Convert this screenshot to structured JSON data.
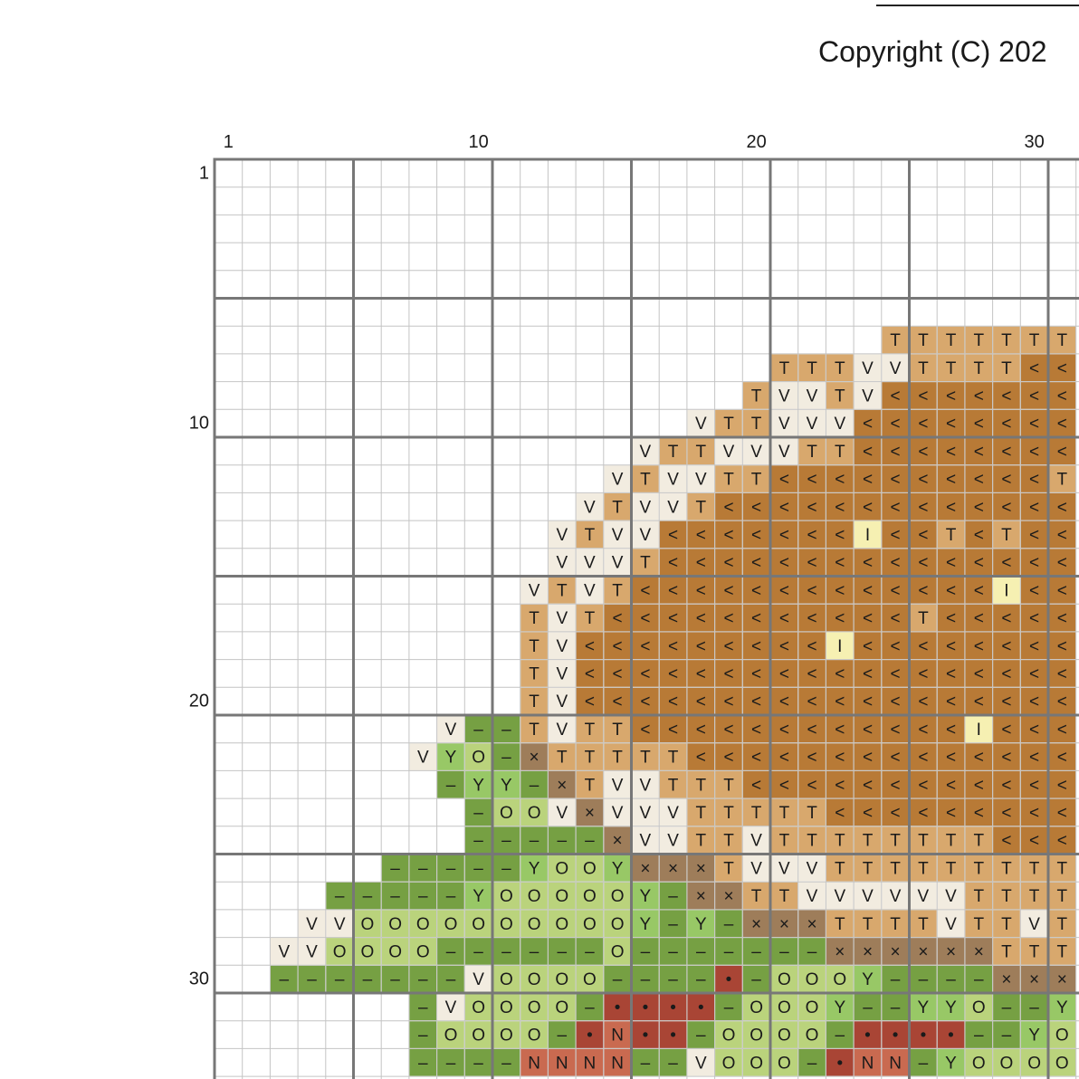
{
  "header": {
    "copyright": "Copyright (C) 202"
  },
  "grid": {
    "col_labels": [
      1,
      10,
      20,
      30
    ],
    "row_labels": [
      1,
      10,
      20,
      30
    ],
    "palette": {
      "<": "#b87a36",
      "T": "#d8a86d",
      "V": "#f2ece0",
      "I": "#f6f0b2",
      "×": "#9e7d5a",
      "Y": "#98c866",
      "O": "#bad37c",
      "–": "#76a043",
      "•": "#a94535",
      "N": "#c96a50"
    },
    "rows": {
      "7": "                        TTTTTTT",
      "8": "                    TTTVVTTTT<<",
      "9": "                   TVVTV<<<<<<<",
      "10": "                 VTTVVV<<<<<<<<",
      "11": "               VTTVVVTT<<<<<<<<",
      "12": "              VTVVTT<<<<<<<<<<T",
      "13": "             VTVVT<<<<<<<<<<<<<",
      "14": "            VTVV<<<<<<<I<<T<T<<",
      "15": "            VVVT<<<<<<<<<<<<<<<",
      "16": "           VTVT<<<<<<<<<<<<<I<<",
      "17": "           TVT<<<<<<<<<<<T<<<<<",
      "18": "           TV<<<<<<<<<I<<<<<<<<",
      "19": "           TV<<<<<<<<<<<<<<<<<<",
      "20": "           TV<<<<<<<<<<<<<<<<<<",
      "21": "        V––TVTT<<<<<<<<<<<<I<<<",
      "22": "       VYO–×TTTTT<<<<<<<<<<<<<<",
      "23": "        –YY–×TVVTTT<<<<<<<<<<<<",
      "24": "         –OOV×VVVTTTTT<<<<<<<<<",
      "25": "         –––––×VVTTVTTTTTTTT<<<",
      "26": "      –––––YOOY×××TVVVTTTTTTTTT",
      "27": "    –––––YOOOOOY–××TTVVVVVVTTTT",
      "28": "   VVOOOOOOOOOOY–Y–×××TTTTVTTVT",
      "29": "  VVOOOO––––––O–––––––××××××TTT",
      "30": "  –––––––VOOOO––––•–OOOY––––×××",
      "31": "       –VOOOO–••••–OOOY––YYO––Y",
      "32": "       –OOOO–•N••–OOOO–••••––YO",
      "33": "       ––––NNNN––VOOO–•NN–YOOOO"
    }
  }
}
